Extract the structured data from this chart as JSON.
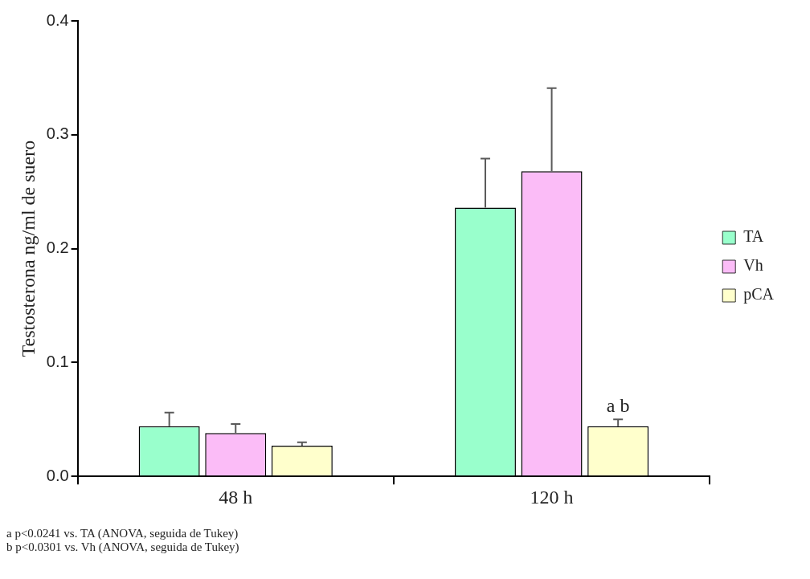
{
  "chart_data": {
    "type": "bar",
    "ylabel": "Testosterona ng/ml de suero",
    "categories": [
      "48 h",
      "120 h"
    ],
    "series": [
      {
        "name": "TA",
        "color": "#99ffcc",
        "values": [
          0.044,
          0.236
        ],
        "errors": [
          0.012,
          0.043
        ]
      },
      {
        "name": "Vh",
        "color": "#fbbcf7",
        "values": [
          0.038,
          0.268
        ],
        "errors": [
          0.008,
          0.073
        ]
      },
      {
        "name": "pCA",
        "color": "#ffffcc",
        "values": [
          0.027,
          0.044
        ],
        "errors": [
          0.003,
          0.006
        ],
        "value_labels": [
          null,
          "a b"
        ]
      }
    ],
    "ylim": [
      0,
      0.4
    ],
    "yticks": [
      {
        "value": 0,
        "label": "0.0"
      },
      0.1,
      0.2,
      0.3,
      0.4
    ],
    "grid": false,
    "legend": "right",
    "annotations": [
      "a p<0.0241 vs. TA (ANOVA, seguida de Tukey)",
      "b p<0.0301 vs. Vh (ANOVA, seguida de Tukey)"
    ]
  }
}
